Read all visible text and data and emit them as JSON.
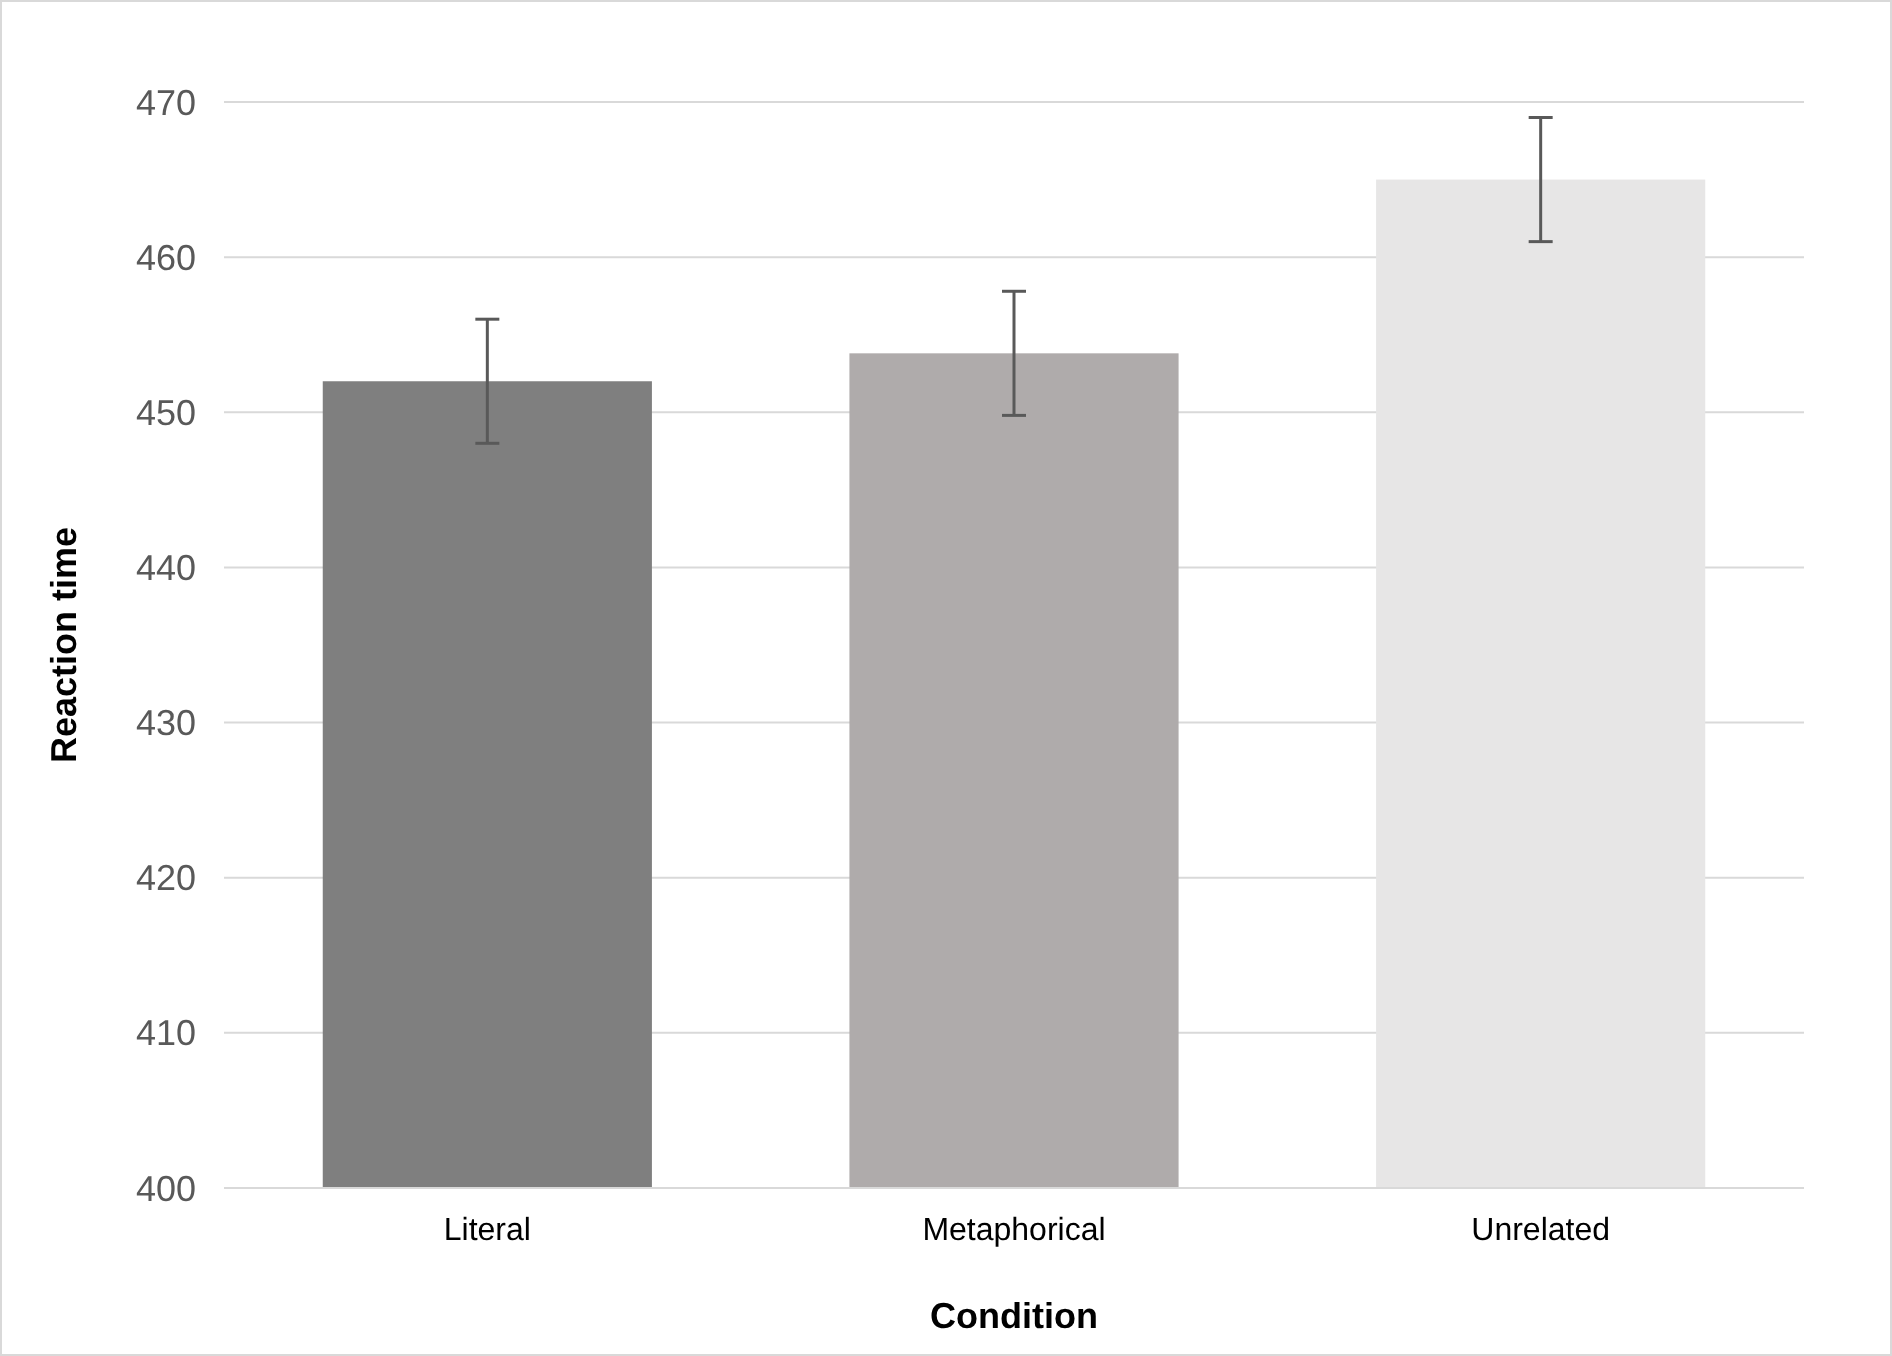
{
  "chart_data": {
    "type": "bar",
    "xlabel": "Condition",
    "ylabel": "Reaction time",
    "categories": [
      "Literal",
      "Metaphorical",
      "Unrelated"
    ],
    "values": [
      452,
      453.8,
      465
    ],
    "colors": [
      "#7f7f7f",
      "#afabab",
      "#e7e6e6"
    ],
    "errors": [
      4,
      4,
      4
    ],
    "ylim": [
      400,
      470
    ],
    "yticks": [
      400,
      410,
      420,
      430,
      440,
      450,
      460,
      470
    ],
    "grid": "y"
  }
}
